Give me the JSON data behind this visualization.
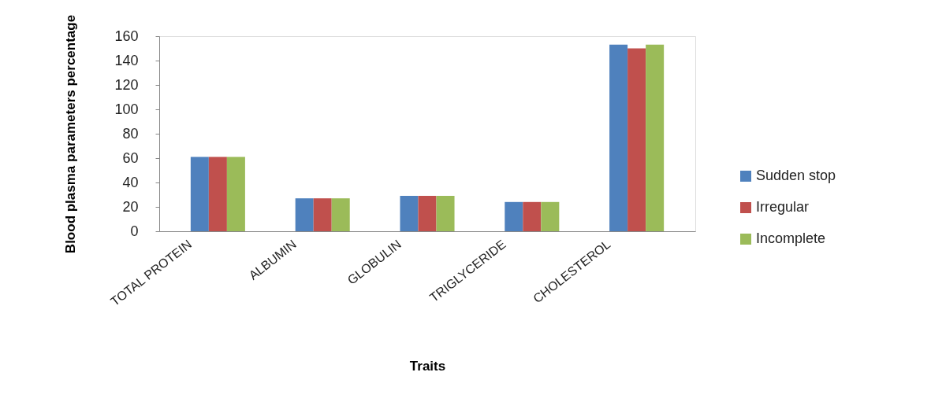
{
  "chart_data": {
    "type": "bar",
    "xlabel": "Traits",
    "ylabel": "Blood plasma parameters percentage",
    "categories": [
      "TOTAL PROTEIN",
      "ALBUMIN",
      "GLOBULIN",
      "TRIGLYCERIDE",
      "CHOLESTEROL"
    ],
    "series": [
      {
        "name": "Sudden stop",
        "color": "#4f81bd",
        "values": [
          61,
          27,
          29,
          24,
          153
        ]
      },
      {
        "name": "Irregular",
        "color": "#c0504d",
        "values": [
          61,
          27,
          29,
          24,
          150
        ]
      },
      {
        "name": "Incomplete",
        "color": "#9bbb59",
        "values": [
          61,
          27,
          29,
          24,
          153
        ]
      }
    ],
    "ylim": [
      0,
      160
    ],
    "yticks": [
      0,
      20,
      40,
      60,
      80,
      100,
      120,
      140,
      160
    ],
    "grid": false,
    "legend": "right"
  }
}
